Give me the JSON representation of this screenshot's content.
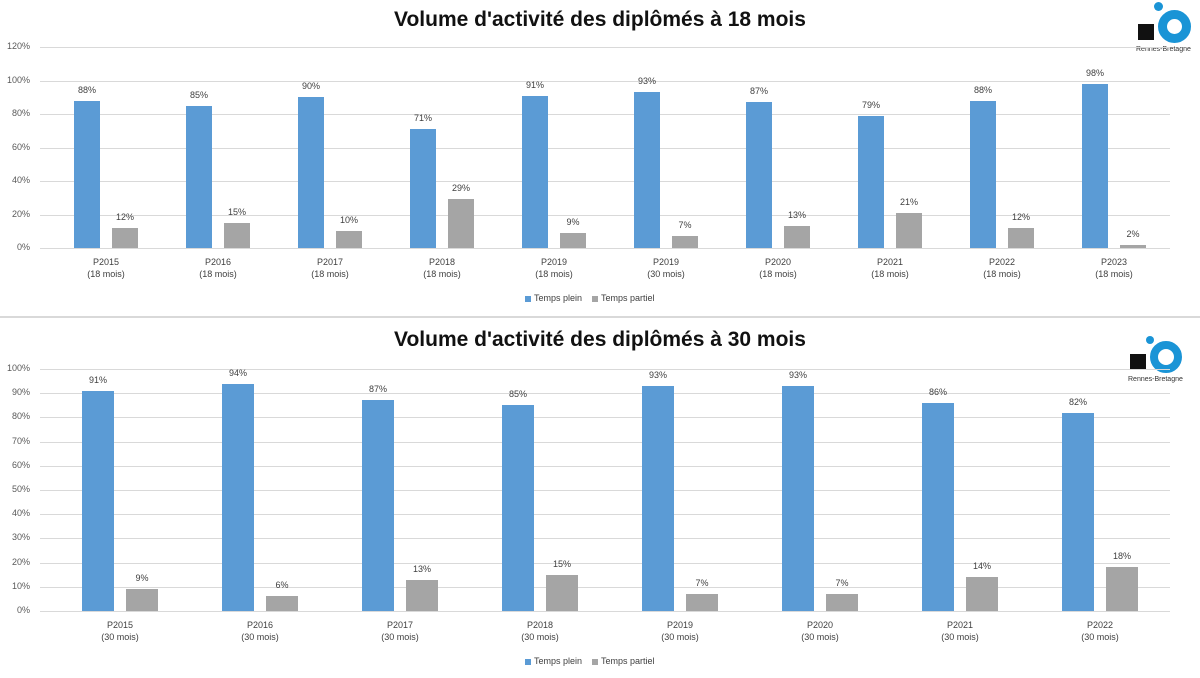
{
  "colors": {
    "full_time": "#5b9bd5",
    "part_time": "#a5a5a5",
    "logo_blue": "#1a94d6"
  },
  "logo": {
    "text": "Rennes-Bretagne"
  },
  "legend": {
    "full_time": "Temps plein",
    "part_time": "Temps partiel"
  },
  "chart_data": [
    {
      "type": "bar",
      "title": "Volume d'activité des diplômés à 18 mois",
      "xlabel": "",
      "ylabel": "",
      "ylim": [
        0,
        120
      ],
      "yticks": [
        "0%",
        "20%",
        "40%",
        "60%",
        "80%",
        "100%",
        "120%"
      ],
      "categories": [
        {
          "line1": "P2015",
          "line2": "(18 mois)"
        },
        {
          "line1": "P2016",
          "line2": "(18 mois)"
        },
        {
          "line1": "P2017",
          "line2": "(18 mois)"
        },
        {
          "line1": "P2018",
          "line2": "(18 mois)"
        },
        {
          "line1": "P2019",
          "line2": "(18 mois)"
        },
        {
          "line1": "P2019",
          "line2": "(30 mois)"
        },
        {
          "line1": "P2020",
          "line2": "(18 mois)"
        },
        {
          "line1": "P2021",
          "line2": "(18 mois)"
        },
        {
          "line1": "P2022",
          "line2": "(18 mois)"
        },
        {
          "line1": "P2023",
          "line2": "(18 mois)"
        }
      ],
      "series": [
        {
          "name": "Temps plein",
          "values": [
            88,
            85,
            90,
            71,
            91,
            93,
            87,
            79,
            88,
            98
          ]
        },
        {
          "name": "Temps partiel",
          "values": [
            12,
            15,
            10,
            29,
            9,
            7,
            13,
            21,
            12,
            2
          ]
        }
      ],
      "grid": true,
      "legend_position": "bottom"
    },
    {
      "type": "bar",
      "title": "Volume d'activité des diplômés à 30 mois",
      "xlabel": "",
      "ylabel": "",
      "ylim": [
        0,
        100
      ],
      "yticks": [
        "0%",
        "10%",
        "20%",
        "30%",
        "40%",
        "50%",
        "60%",
        "70%",
        "80%",
        "90%",
        "100%"
      ],
      "categories": [
        {
          "line1": "P2015",
          "line2": "(30 mois)"
        },
        {
          "line1": "P2016",
          "line2": "(30 mois)"
        },
        {
          "line1": "P2017",
          "line2": "(30 mois)"
        },
        {
          "line1": "P2018",
          "line2": "(30 mois)"
        },
        {
          "line1": "P2019",
          "line2": "(30 mois)"
        },
        {
          "line1": "P2020",
          "line2": "(30 mois)"
        },
        {
          "line1": "P2021",
          "line2": "(30 mois)"
        },
        {
          "line1": "P2022",
          "line2": "(30 mois)"
        }
      ],
      "series": [
        {
          "name": "Temps plein",
          "values": [
            91,
            94,
            87,
            85,
            93,
            93,
            86,
            82
          ]
        },
        {
          "name": "Temps partiel",
          "values": [
            9,
            6,
            13,
            15,
            7,
            7,
            14,
            18
          ]
        }
      ],
      "grid": true,
      "legend_position": "bottom"
    }
  ]
}
